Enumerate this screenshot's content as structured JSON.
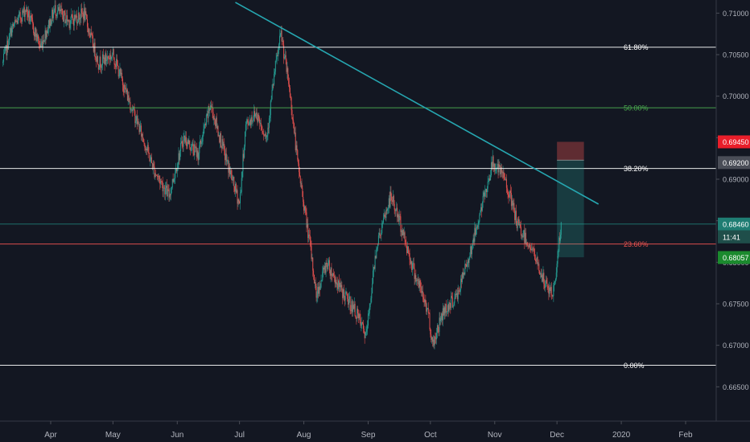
{
  "chart_data": {
    "type": "candlestick",
    "colors": {
      "background": "#131722",
      "up": "#26a69a",
      "down": "#ef5350",
      "trendline": "#26a6b0",
      "axis_text": "#b2b5be"
    },
    "ylim": [
      0.663,
      0.711
    ],
    "y_ticks": [
      "0.71000",
      "0.70500",
      "0.70000",
      "0.69500",
      "0.69000",
      "0.68500",
      "0.68000",
      "0.67500",
      "0.67000",
      "0.66500"
    ],
    "y_tick_values": [
      0.71,
      0.705,
      0.7,
      0.695,
      0.69,
      0.685,
      0.68,
      0.675,
      0.67,
      0.665
    ],
    "x_labels": [
      "Apr",
      "May",
      "Jun",
      "Jul",
      "Aug",
      "Sep",
      "Oct",
      "Nov",
      "Dec",
      "2020",
      "Feb"
    ],
    "x_label_dates": [
      "2019-04-01",
      "2019-05-01",
      "2019-06-01",
      "2019-07-01",
      "2019-08-01",
      "2019-09-01",
      "2019-10-01",
      "2019-11-01",
      "2019-12-01",
      "2020-01-01",
      "2020-02-01"
    ],
    "fib_levels": [
      {
        "label": "61.80%",
        "price": 0.7059,
        "color": "#ffffff"
      },
      {
        "label": "50.00%",
        "price": 0.6986,
        "color": "#4caf50"
      },
      {
        "label": "38.20%",
        "price": 0.6913,
        "color": "#ffffff"
      },
      {
        "label": "23.60%",
        "price": 0.6822,
        "color": "#ef5350"
      },
      {
        "label": "0.00%",
        "price": 0.6676,
        "color": "#ffffff"
      }
    ],
    "current_price_line": {
      "price": 0.6846,
      "color": "#26a69a"
    },
    "price_tags": [
      {
        "text": "0.69450",
        "price": 0.6945,
        "color": "#e91e2a"
      },
      {
        "text": "0.69200",
        "price": 0.692,
        "color": "#4a4d57"
      },
      {
        "text": "0.68460",
        "price": 0.6846,
        "color": "#1f7d73"
      },
      {
        "text": "11:41",
        "price": 0.6833,
        "color": "#1f4e4a"
      },
      {
        "text": "0.68057",
        "price": 0.68057,
        "color": "#1b8a2e"
      }
    ],
    "trendline": [
      {
        "date": "2019-06-29",
        "price": 0.7113
      },
      {
        "date": "2019-12-21",
        "price": 0.687
      }
    ],
    "position": {
      "start": "2019-12-01",
      "end": "2019-12-14",
      "entry": 0.6923,
      "stop": 0.6945,
      "target": 0.6806
    },
    "series": {
      "start": "2019-03-09",
      "end": "2019-12-03",
      "anchors": [
        [
          "2019-03-09",
          0.704
        ],
        [
          "2019-03-13",
          0.708
        ],
        [
          "2019-03-20",
          0.7105
        ],
        [
          "2019-03-27",
          0.706
        ],
        [
          "2019-04-03",
          0.7105
        ],
        [
          "2019-04-10",
          0.709
        ],
        [
          "2019-04-17",
          0.71
        ],
        [
          "2019-04-24",
          0.704
        ],
        [
          "2019-05-01",
          0.705
        ],
        [
          "2019-05-08",
          0.7
        ],
        [
          "2019-05-14",
          0.696
        ],
        [
          "2019-05-21",
          0.691
        ],
        [
          "2019-05-28",
          0.688
        ],
        [
          "2019-06-04",
          0.695
        ],
        [
          "2019-06-11",
          0.693
        ],
        [
          "2019-06-17",
          0.699
        ],
        [
          "2019-06-25",
          0.692
        ],
        [
          "2019-07-01",
          0.687
        ],
        [
          "2019-07-04",
          0.6965
        ],
        [
          "2019-07-09",
          0.698
        ],
        [
          "2019-07-14",
          0.695
        ],
        [
          "2019-07-18",
          0.703
        ],
        [
          "2019-07-21",
          0.7075
        ],
        [
          "2019-07-25",
          0.701
        ],
        [
          "2019-07-29",
          0.692
        ],
        [
          "2019-08-04",
          0.682
        ],
        [
          "2019-08-07",
          0.676
        ],
        [
          "2019-08-12",
          0.68
        ],
        [
          "2019-08-18",
          0.677
        ],
        [
          "2019-08-26",
          0.674
        ],
        [
          "2019-08-31",
          0.671
        ],
        [
          "2019-09-05",
          0.682
        ],
        [
          "2019-09-12",
          0.688
        ],
        [
          "2019-09-16",
          0.685
        ],
        [
          "2019-09-23",
          0.679
        ],
        [
          "2019-09-30",
          0.674
        ],
        [
          "2019-10-02",
          0.67
        ],
        [
          "2019-10-07",
          0.674
        ],
        [
          "2019-10-14",
          0.676
        ],
        [
          "2019-10-21",
          0.682
        ],
        [
          "2019-10-25",
          0.686
        ],
        [
          "2019-10-31",
          0.692
        ],
        [
          "2019-11-06",
          0.69
        ],
        [
          "2019-11-12",
          0.6845
        ],
        [
          "2019-11-19",
          0.6815
        ],
        [
          "2019-11-25",
          0.6775
        ],
        [
          "2019-11-29",
          0.676
        ],
        [
          "2019-12-01",
          0.68
        ],
        [
          "2019-12-03",
          0.6846
        ]
      ]
    }
  }
}
